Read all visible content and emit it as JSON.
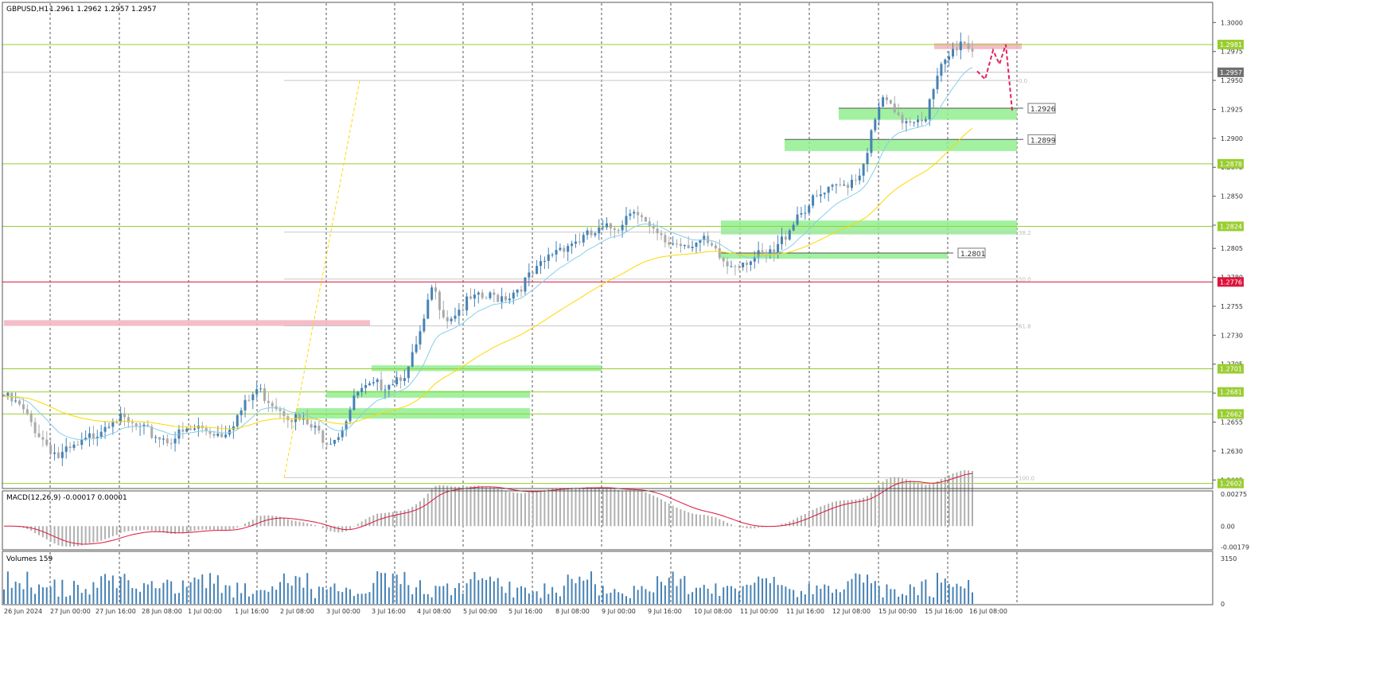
{
  "header": {
    "symbol_tf": "GBPUSD,H1",
    "ohlc": "1.2961 1.2962 1.2957 1.2957"
  },
  "macd_label": "MACD(12,26,9) -0.00017 0.00001",
  "volumes_label": "Volumes 159",
  "time_labels": [
    "26 Jun 2024",
    "27 Jun 00:00",
    "27 Jun 16:00",
    "28 Jun 08:00",
    "1 Jul 00:00",
    "1 Jul 16:00",
    "2 Jul 08:00",
    "3 Jul 00:00",
    "3 Jul 16:00",
    "4 Jul 08:00",
    "5 Jul 00:00",
    "5 Jul 16:00",
    "8 Jul 08:00",
    "9 Jul 00:00",
    "9 Jul 16:00",
    "10 Jul 08:00",
    "11 Jul 00:00",
    "11 Jul 16:00",
    "12 Jul 08:00",
    "15 Jul 00:00",
    "15 Jul 16:00",
    "16 Jul 08:00"
  ],
  "price_ticks": [
    "1.3000",
    "1.2975",
    "1.2950",
    "1.2925",
    "1.2900",
    "1.2875",
    "1.2850",
    "1.2825",
    "1.2805",
    "1.2780",
    "1.2755",
    "1.2730",
    "1.2705",
    "1.2680",
    "1.2655",
    "1.2630",
    "1.2605"
  ],
  "level_labels": [
    "1.2981",
    "1.2878",
    "1.2824",
    "1.2776",
    "1.2701",
    "1.2681",
    "1.2662",
    "1.2602"
  ],
  "current_price": "1.2957",
  "box_labels": [
    "1.2926",
    "1.2899",
    "1.2801"
  ],
  "fib_labels": [
    "0.0",
    "38.2",
    "50.0",
    "61.8",
    "100.0"
  ],
  "macd_ticks": [
    "0.00275",
    "0.00",
    "-0.00179"
  ],
  "volume_ticks": [
    "3150",
    "0"
  ],
  "colors": {
    "level": "#9acd32",
    "red_level": "#dc143c",
    "zone_green": "#90ee90",
    "zone_pink": "#f4b6c2",
    "ema_fast": "#87ceeb",
    "ema_slow": "#ffd700",
    "bull": "#4682b4",
    "bear": "#a9a9a9",
    "forecast": "#e0245e"
  },
  "chart_data": {
    "type": "candlestick",
    "title": "GBPUSD,H1",
    "ylim": [
      1.2599,
      1.3016
    ],
    "levels": [
      1.2981,
      1.2878,
      1.2824,
      1.2776,
      1.2701,
      1.2681,
      1.2662,
      1.2602
    ],
    "red_level": 1.2776,
    "current_price": 1.2957,
    "green_zones": [
      [
        1.2916,
        1.2926
      ],
      [
        1.2889,
        1.2899
      ],
      [
        1.2817,
        1.2829
      ],
      [
        1.2796,
        1.2801
      ],
      [
        1.2699,
        1.2704
      ],
      [
        1.2676,
        1.2682
      ],
      [
        1.2658,
        1.2667
      ]
    ],
    "pink_zones": [
      [
        1.2738,
        1.2743
      ],
      [
        1.2977,
        1.2982
      ]
    ],
    "fibonacci": {
      "levels": [
        "0.0",
        "38.2",
        "50.0",
        "61.8",
        "100.0"
      ],
      "high": 1.295,
      "low": 1.2607
    },
    "forecast_path": [
      1.2958,
      1.2951,
      1.2976,
      1.2964,
      1.2981,
      1.2924
    ],
    "macd": {
      "ylim": [
        -0.0019,
        0.0029
      ],
      "ticks": [
        0.00275,
        0.0,
        -0.00179
      ]
    },
    "volume": {
      "ymax": 3150
    }
  }
}
